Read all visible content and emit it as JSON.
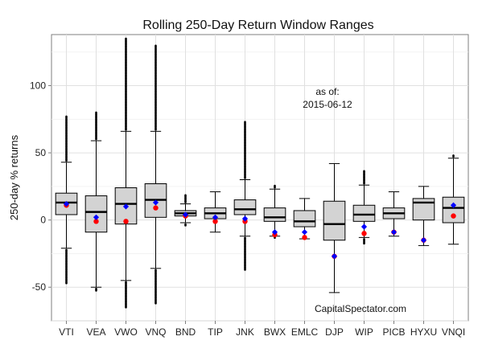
{
  "chart_data": {
    "type": "box",
    "title": "Rolling 250-Day Return Window Ranges",
    "xlabel": "",
    "ylabel": "250-day % returns",
    "ylim": [
      -75,
      138
    ],
    "yticks": [
      -50,
      0,
      50,
      100
    ],
    "grid": true,
    "annotations": {
      "as_of_label": "as of:",
      "as_of_date": "2015-06-12",
      "source": "CapitalSpectator.com"
    },
    "marker_colors": {
      "blue": "#0000ff",
      "red": "#ff0000"
    },
    "box_fill": "#d3d3d3",
    "categories": [
      "VTI",
      "VEA",
      "VWO",
      "VNQ",
      "BND",
      "TIP",
      "JNK",
      "BWX",
      "EMLC",
      "DJP",
      "WIP",
      "PICB",
      "HYXU",
      "VNQI"
    ],
    "boxes": [
      {
        "name": "VTI",
        "whisker_low": -21,
        "q1": 4,
        "median": 13,
        "q3": 20,
        "whisker_high": 43,
        "outlier_low": -47,
        "outlier_high": 77,
        "blue": 12,
        "red": 11
      },
      {
        "name": "VEA",
        "whisker_low": -50,
        "q1": -9,
        "median": 6,
        "q3": 18,
        "whisker_high": 59,
        "outlier_low": -53,
        "outlier_high": 80,
        "blue": 2,
        "red": -1
      },
      {
        "name": "VWO",
        "whisker_low": -45,
        "q1": -3,
        "median": 12,
        "q3": 24,
        "whisker_high": 66,
        "outlier_low": -65,
        "outlier_high": 135,
        "blue": 10,
        "red": -1
      },
      {
        "name": "VNQ",
        "whisker_low": -36,
        "q1": 2,
        "median": 15,
        "q3": 27,
        "whisker_high": 66,
        "outlier_low": -62,
        "outlier_high": 130,
        "blue": 13,
        "red": 9
      },
      {
        "name": "BND",
        "whisker_low": -2,
        "q1": 3,
        "median": 5,
        "q3": 7,
        "whisker_high": 12,
        "outlier_low": -4,
        "outlier_high": 19,
        "blue": 4,
        "red": 3
      },
      {
        "name": "TIP",
        "whisker_low": -9,
        "q1": 1,
        "median": 5,
        "q3": 9,
        "whisker_high": 21,
        "outlier_low": null,
        "outlier_high": null,
        "blue": 2,
        "red": -1
      },
      {
        "name": "JNK",
        "whisker_low": -12,
        "q1": 4,
        "median": 8,
        "q3": 15,
        "whisker_high": 30,
        "outlier_low": -37,
        "outlier_high": 73,
        "blue": 1,
        "red": -1
      },
      {
        "name": "BWX",
        "whisker_low": -12,
        "q1": -1,
        "median": 2,
        "q3": 9,
        "whisker_high": 23,
        "outlier_low": -13,
        "outlier_high": 26,
        "blue": -9,
        "red": -11
      },
      {
        "name": "EMLC",
        "whisker_low": -14,
        "q1": -5,
        "median": -1,
        "q3": 7,
        "whisker_high": 16,
        "outlier_low": null,
        "outlier_high": null,
        "blue": -9,
        "red": -13
      },
      {
        "name": "DJP",
        "whisker_low": -54,
        "q1": -15,
        "median": -3,
        "q3": 14,
        "whisker_high": 42,
        "outlier_low": null,
        "outlier_high": null,
        "blue": -27,
        "red": -27
      },
      {
        "name": "WIP",
        "whisker_low": -13,
        "q1": -1,
        "median": 4,
        "q3": 11,
        "whisker_high": 26,
        "outlier_low": -18,
        "outlier_high": 37,
        "blue": -5,
        "red": -10
      },
      {
        "name": "PICB",
        "whisker_low": -12,
        "q1": 1,
        "median": 5,
        "q3": 9,
        "whisker_high": 21,
        "outlier_low": null,
        "outlier_high": null,
        "blue": -9,
        "red": -9
      },
      {
        "name": "HYXU",
        "whisker_low": -19,
        "q1": 0,
        "median": 13,
        "q3": 16,
        "whisker_high": 25,
        "outlier_low": null,
        "outlier_high": null,
        "blue": -15,
        "red": -15
      },
      {
        "name": "VNQI",
        "whisker_low": -18,
        "q1": -2,
        "median": 9,
        "q3": 17,
        "whisker_high": 46,
        "outlier_low": null,
        "outlier_high": 48,
        "blue": 11,
        "red": 3
      }
    ]
  }
}
